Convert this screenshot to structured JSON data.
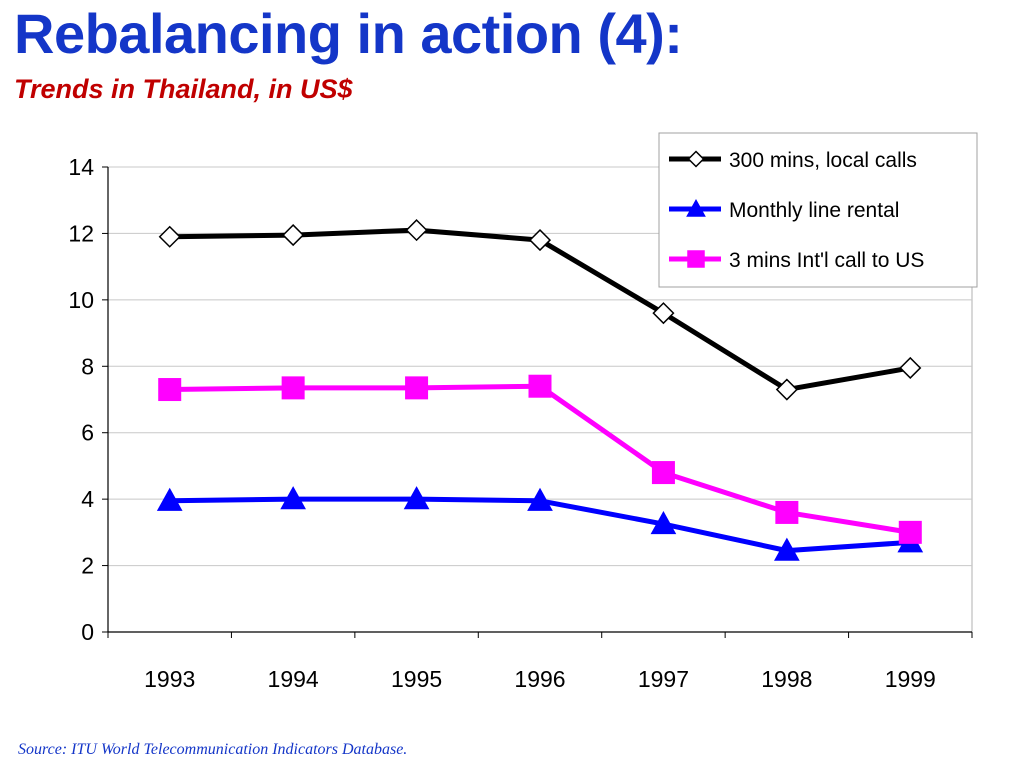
{
  "colors": {
    "title": "#1436c8",
    "subtitle": "#c00000",
    "source": "#1436c8"
  },
  "slide": {
    "title": "Rebalancing in action (4):",
    "subtitle": "Trends in Thailand, in US$",
    "source": "Source: ITU World Telecommunication Indicators Database."
  },
  "chart_data": {
    "type": "line",
    "categories": [
      "1993",
      "1994",
      "1995",
      "1996",
      "1997",
      "1998",
      "1999"
    ],
    "ylim": [
      0,
      14
    ],
    "yticks": [
      0,
      2,
      4,
      6,
      8,
      10,
      12,
      14
    ],
    "grid": true,
    "legend_position": "top-right",
    "series": [
      {
        "name": "300 mins, local calls",
        "color": "#000000",
        "marker": "diamond",
        "values": [
          11.9,
          11.95,
          12.1,
          11.8,
          9.6,
          7.3,
          7.95
        ]
      },
      {
        "name": "Monthly line rental",
        "color": "#0000ff",
        "marker": "triangle",
        "values": [
          3.95,
          4.0,
          4.0,
          3.95,
          3.25,
          2.45,
          2.7
        ]
      },
      {
        "name": "3 mins Int'l call to US",
        "color": "#ff00ff",
        "marker": "square",
        "values": [
          7.3,
          7.35,
          7.35,
          7.4,
          4.8,
          3.6,
          3.0
        ]
      }
    ]
  }
}
